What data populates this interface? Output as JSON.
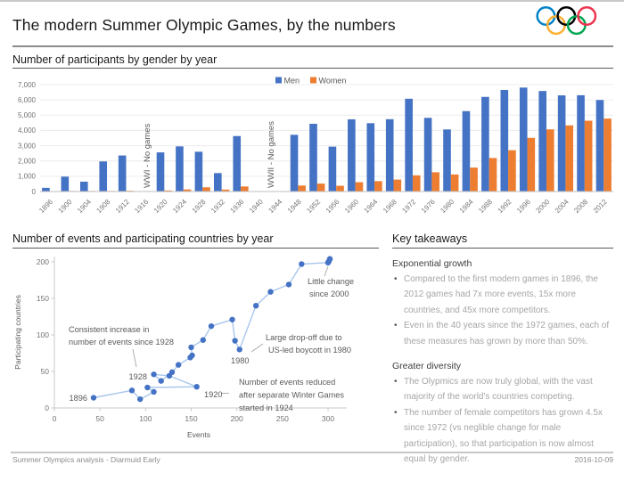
{
  "page": {
    "title": "The modern Summer Olympic Games, by the numbers",
    "footer_left": "Summer Olympics analysis - Diarmuid Early",
    "footer_right": "2016-10-09"
  },
  "olympic_rings": {
    "colors": [
      "#0081C8",
      "#FCB131",
      "#000000",
      "#00A651",
      "#EE334E"
    ]
  },
  "sections": {
    "takeaways": {
      "title": "Key takeaways",
      "groups": [
        {
          "heading": "Exponential growth",
          "bullets": [
            "Compared to the first modern games in 1896, the 2012 games had 7x more events, 15x more countries, and 45x more competitors.",
            "Even in the 40 years since the 1972 games, each of these measures has grown by more than 50%."
          ]
        },
        {
          "heading": "Greater diversity",
          "bullets": [
            "The Olypmics are now truly global, with the vast majority of the world's countries competing.",
            "The number of female competitors has grown 4.5x since 1972 (vs neglible change for male participation), so that participation is now almost equal by gender."
          ]
        }
      ]
    }
  },
  "chart_data": [
    {
      "id": "participants_by_gender",
      "type": "bar",
      "title": "Number of participants by gender by year",
      "categories": [
        1896,
        1900,
        1904,
        1908,
        1912,
        1916,
        1920,
        1924,
        1928,
        1932,
        1936,
        1940,
        1944,
        1948,
        1952,
        1956,
        1960,
        1964,
        1968,
        1972,
        1976,
        1980,
        1984,
        1988,
        1992,
        1996,
        2000,
        2004,
        2008,
        2012
      ],
      "series": [
        {
          "name": "Men",
          "color": "#4472C4",
          "values": [
            241,
            975,
            645,
            1971,
            2359,
            null,
            2561,
            2954,
            2606,
            1206,
            3632,
            null,
            null,
            3714,
            4436,
            2938,
            4727,
            4473,
            4735,
            6075,
            4824,
            4064,
            5263,
            6197,
            6652,
            6806,
            6582,
            6296,
            6305,
            5992
          ]
        },
        {
          "name": "Women",
          "color": "#ED7D31",
          "values": [
            0,
            22,
            6,
            37,
            48,
            null,
            65,
            135,
            277,
            126,
            331,
            null,
            null,
            390,
            519,
            376,
            611,
            678,
            781,
            1059,
            1260,
            1115,
            1566,
            2194,
            2704,
            3512,
            4069,
            4329,
            4637,
            4776
          ]
        }
      ],
      "ylim": [
        0,
        7000
      ],
      "ytick_step": 1000,
      "grid": true,
      "legend_position": "top-center",
      "no_games_notes": [
        {
          "label": "WWI - No games",
          "category": 1916
        },
        {
          "label": "WWII - No games",
          "category": 1942
        }
      ]
    },
    {
      "id": "events_vs_countries",
      "type": "scatter",
      "title": "Number of events and participating countries by year",
      "xlabel": "Events",
      "ylabel": "Participating countries",
      "xticks": [
        0,
        50,
        100,
        150,
        200,
        250,
        300
      ],
      "yticks": [
        0,
        50,
        100,
        150,
        200
      ],
      "line_color": "#A9C6EC",
      "marker_color": "#4472C4",
      "points": [
        {
          "year": 1896,
          "events": 43,
          "countries": 14
        },
        {
          "year": 1900,
          "events": 85,
          "countries": 24
        },
        {
          "year": 1904,
          "events": 94,
          "countries": 12
        },
        {
          "year": 1908,
          "events": 109,
          "countries": 22
        },
        {
          "year": 1912,
          "events": 102,
          "countries": 28
        },
        {
          "year": 1920,
          "events": 156,
          "countries": 29
        },
        {
          "year": 1924,
          "events": 126,
          "countries": 44
        },
        {
          "year": 1928,
          "events": 109,
          "countries": 46
        },
        {
          "year": 1932,
          "events": 117,
          "countries": 37
        },
        {
          "year": 1936,
          "events": 129,
          "countries": 49
        },
        {
          "year": 1948,
          "events": 136,
          "countries": 59
        },
        {
          "year": 1952,
          "events": 149,
          "countries": 69
        },
        {
          "year": 1956,
          "events": 151,
          "countries": 72
        },
        {
          "year": 1960,
          "events": 150,
          "countries": 83
        },
        {
          "year": 1964,
          "events": 163,
          "countries": 93
        },
        {
          "year": 1968,
          "events": 172,
          "countries": 112
        },
        {
          "year": 1972,
          "events": 195,
          "countries": 121
        },
        {
          "year": 1976,
          "events": 198,
          "countries": 92
        },
        {
          "year": 1980,
          "events": 203,
          "countries": 80
        },
        {
          "year": 1984,
          "events": 221,
          "countries": 140
        },
        {
          "year": 1988,
          "events": 237,
          "countries": 159
        },
        {
          "year": 1992,
          "events": 257,
          "countries": 169
        },
        {
          "year": 1996,
          "events": 271,
          "countries": 197
        },
        {
          "year": 2000,
          "events": 300,
          "countries": 199
        },
        {
          "year": 2004,
          "events": 301,
          "countries": 201
        },
        {
          "year": 2008,
          "events": 302,
          "countries": 204
        },
        {
          "year": 2012,
          "events": 302,
          "countries": 204
        }
      ],
      "point_labels": [
        1896,
        1920,
        1928,
        1980
      ],
      "annotations": [
        {
          "id": "since1928",
          "lines": [
            "Consistent increase in",
            "number of events since 1928"
          ]
        },
        {
          "id": "winter",
          "lines": [
            "Number of events reduced",
            "after separate Winter Games",
            "started in 1924"
          ]
        },
        {
          "id": "boycott",
          "lines": [
            "Large drop-off due to",
            "US-led boycott in 1980"
          ]
        },
        {
          "id": "littlechange",
          "lines": [
            "Little change",
            "since 2000"
          ]
        }
      ]
    }
  ]
}
